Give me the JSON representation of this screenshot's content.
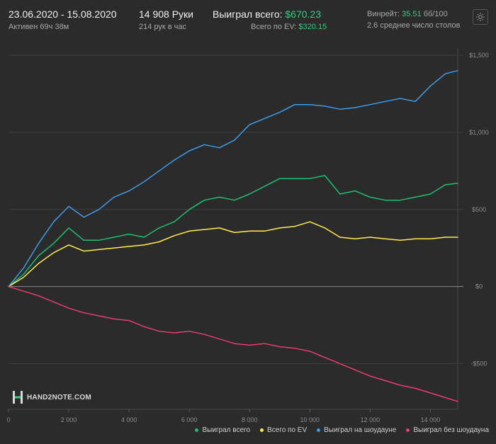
{
  "header": {
    "date_range": "23.06.2020 - 15.08.2020",
    "active_time": "Активен 69ч 38м",
    "hands_count": "14 908 Руки",
    "hands_per_hour": "214 рук в час",
    "won_total_label": "Выиграл всего:",
    "won_total_value": "$670.23",
    "ev_total_label": "Всего по EV:",
    "ev_total_value": "$320.15",
    "winrate_label": "Винрейт:",
    "winrate_value": "35.51",
    "winrate_unit": "бб/100",
    "avg_tables": "2.6 среднее число столов"
  },
  "logo": {
    "text": "HAND2NOTE.COM"
  },
  "colors": {
    "background": "#2b2b2b",
    "won_total": "#1dbf73",
    "ev": "#ffee4d",
    "showdown": "#3d9be8",
    "non_showdown": "#e83d70",
    "accent_green": "#2fcf7e"
  },
  "chart_data": {
    "type": "line",
    "xlim": [
      0,
      14908
    ],
    "ylim": [
      -750,
      1500
    ],
    "x_ticks": [
      0,
      2000,
      4000,
      6000,
      8000,
      10000,
      12000,
      14000
    ],
    "x_tick_labels": [
      "0",
      "2 000",
      "4 000",
      "6 000",
      "8 000",
      "10 000",
      "12 000",
      "14 000"
    ],
    "y_ticks": [
      1500,
      1000,
      500,
      0,
      -500
    ],
    "y_tick_labels": [
      "$1,500",
      "$1,000",
      "$500",
      "$0",
      "-$500"
    ],
    "legend_position": "bottom-right",
    "x": [
      0,
      500,
      1000,
      1500,
      2000,
      2500,
      3000,
      3500,
      4000,
      4500,
      5000,
      5500,
      6000,
      6500,
      7000,
      7500,
      8000,
      8500,
      9000,
      9500,
      10000,
      10500,
      11000,
      11500,
      12000,
      12500,
      13000,
      13500,
      14000,
      14500,
      14908
    ],
    "series": [
      {
        "name": "Выиграл всего",
        "color": "#1dbf73",
        "values": [
          0,
          80,
          200,
          280,
          380,
          300,
          300,
          320,
          340,
          320,
          380,
          420,
          500,
          560,
          580,
          560,
          600,
          650,
          700,
          700,
          700,
          720,
          600,
          620,
          580,
          560,
          560,
          580,
          600,
          660,
          670
        ]
      },
      {
        "name": "Всего по EV",
        "color": "#ffee4d",
        "values": [
          0,
          60,
          150,
          220,
          270,
          230,
          240,
          250,
          260,
          270,
          290,
          330,
          360,
          370,
          380,
          350,
          360,
          360,
          380,
          390,
          420,
          380,
          320,
          310,
          320,
          310,
          300,
          310,
          310,
          320,
          320
        ]
      },
      {
        "name": "Выиграл на шоудауне",
        "color": "#3d9be8",
        "values": [
          0,
          120,
          280,
          420,
          520,
          450,
          500,
          580,
          620,
          680,
          750,
          820,
          880,
          920,
          900,
          950,
          1050,
          1090,
          1130,
          1180,
          1180,
          1170,
          1150,
          1160,
          1180,
          1200,
          1220,
          1200,
          1300,
          1380,
          1400
        ]
      },
      {
        "name": "Выиграл без шоудауна",
        "color": "#e83d70",
        "values": [
          0,
          -30,
          -60,
          -100,
          -140,
          -170,
          -190,
          -210,
          -220,
          -260,
          -290,
          -300,
          -290,
          -310,
          -340,
          -370,
          -380,
          -370,
          -390,
          -400,
          -420,
          -460,
          -500,
          -540,
          -580,
          -610,
          -640,
          -660,
          -690,
          -720,
          -745
        ]
      }
    ]
  }
}
